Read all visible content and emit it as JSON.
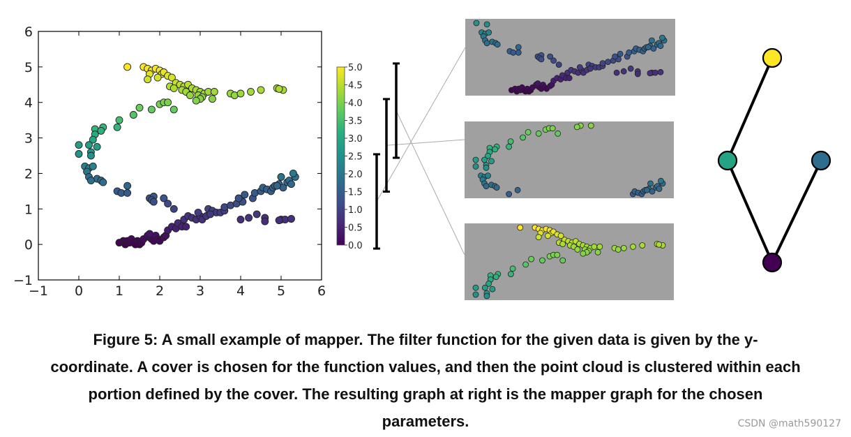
{
  "figure": {
    "caption_lines": [
      "Figure 5: A small example of mapper. The filter function for the given data is given by the y-",
      "coordinate. A cover is chosen for the function values, and then the point cloud is clustered within each",
      "portion defined by the cover. The resulting graph at right is the mapper graph for the chosen",
      "parameters."
    ],
    "watermark": "CSDN @math590127"
  },
  "chart_data": [
    {
      "type": "scatter",
      "title": "",
      "xlabel": "",
      "ylabel": "",
      "xlim": [
        -1,
        6
      ],
      "ylim": [
        -1,
        6
      ],
      "xticks": [
        "−1",
        "0",
        "1",
        "2",
        "3",
        "4",
        "5",
        "6"
      ],
      "yticks": [
        "−1",
        "0",
        "1",
        "2",
        "3",
        "4",
        "5",
        "6"
      ],
      "grid": false,
      "colormap": "viridis",
      "color_by": "y",
      "colorbar": {
        "range": [
          0,
          5
        ],
        "ticks": [
          "0.0",
          "0.5",
          "1.0",
          "1.5",
          "2.0",
          "2.5",
          "3.0",
          "3.5",
          "4.0",
          "4.5",
          "5.0"
        ]
      },
      "points": [
        [
          1.2,
          5.0
        ],
        [
          1.6,
          5.0
        ],
        [
          1.7,
          4.95
        ],
        [
          1.8,
          4.9
        ],
        [
          1.75,
          4.8
        ],
        [
          1.9,
          4.95
        ],
        [
          2.0,
          4.9
        ],
        [
          2.05,
          4.8
        ],
        [
          2.1,
          4.85
        ],
        [
          1.95,
          4.7
        ],
        [
          2.2,
          4.75
        ],
        [
          2.3,
          4.7
        ],
        [
          1.7,
          4.65
        ],
        [
          2.4,
          4.55
        ],
        [
          2.5,
          4.5
        ],
        [
          2.6,
          4.45
        ],
        [
          2.7,
          4.5
        ],
        [
          2.8,
          4.4
        ],
        [
          2.25,
          4.45
        ],
        [
          2.35,
          4.4
        ],
        [
          2.55,
          4.35
        ],
        [
          2.65,
          4.3
        ],
        [
          2.9,
          4.35
        ],
        [
          3.0,
          4.3
        ],
        [
          3.1,
          4.25
        ],
        [
          2.95,
          4.2
        ],
        [
          3.05,
          4.15
        ],
        [
          3.2,
          4.3
        ],
        [
          3.35,
          4.3
        ],
        [
          2.75,
          4.2
        ],
        [
          3.0,
          4.1
        ],
        [
          2.9,
          4.05
        ],
        [
          3.3,
          4.1
        ],
        [
          3.75,
          4.25
        ],
        [
          3.85,
          4.2
        ],
        [
          4.0,
          4.25
        ],
        [
          4.25,
          4.3
        ],
        [
          4.5,
          4.35
        ],
        [
          4.9,
          4.4
        ],
        [
          5.05,
          4.35
        ],
        [
          4.95,
          4.38
        ],
        [
          1.5,
          3.85
        ],
        [
          1.8,
          3.8
        ],
        [
          2.0,
          3.95
        ],
        [
          2.1,
          4.0
        ],
        [
          2.2,
          4.0
        ],
        [
          2.35,
          3.8
        ],
        [
          1.35,
          3.65
        ],
        [
          1.0,
          3.5
        ],
        [
          0.95,
          3.3
        ],
        [
          0.6,
          3.3
        ],
        [
          0.4,
          3.25
        ],
        [
          0.55,
          3.2
        ],
        [
          0.4,
          3.1
        ],
        [
          0.35,
          2.95
        ],
        [
          0.25,
          2.8
        ],
        [
          0.0,
          2.8
        ],
        [
          0.45,
          2.75
        ],
        [
          0.0,
          2.55
        ],
        [
          0.3,
          2.6
        ],
        [
          0.3,
          2.5
        ],
        [
          0.15,
          2.2
        ],
        [
          0.25,
          2.15
        ],
        [
          0.35,
          2.2
        ],
        [
          0.2,
          2.05
        ],
        [
          0.25,
          1.9
        ],
        [
          0.45,
          1.85
        ],
        [
          0.3,
          1.8
        ],
        [
          0.55,
          1.8
        ],
        [
          0.6,
          1.75
        ],
        [
          0.95,
          1.5
        ],
        [
          1.05,
          1.45
        ],
        [
          1.2,
          1.45
        ],
        [
          1.2,
          1.65
        ],
        [
          1.75,
          1.3
        ],
        [
          1.85,
          1.35
        ],
        [
          1.8,
          1.25
        ],
        [
          1.85,
          1.2
        ],
        [
          2.1,
          1.3
        ],
        [
          2.2,
          1.15
        ],
        [
          2.35,
          1.0
        ],
        [
          1.0,
          0.05
        ],
        [
          1.1,
          0.1
        ],
        [
          1.15,
          0.0
        ],
        [
          1.2,
          0.1
        ],
        [
          1.25,
          0.05
        ],
        [
          1.3,
          0.15
        ],
        [
          1.35,
          0.05
        ],
        [
          1.4,
          0.0
        ],
        [
          1.45,
          0.1
        ],
        [
          1.5,
          0.0
        ],
        [
          1.55,
          0.05
        ],
        [
          1.6,
          0.15
        ],
        [
          1.7,
          0.25
        ],
        [
          1.75,
          0.2
        ],
        [
          1.8,
          0.15
        ],
        [
          1.85,
          0.1
        ],
        [
          1.9,
          0.25
        ],
        [
          1.95,
          0.15
        ],
        [
          2.0,
          0.1
        ],
        [
          2.1,
          0.2
        ],
        [
          2.15,
          0.25
        ],
        [
          1.75,
          0.3
        ],
        [
          2.2,
          0.4
        ],
        [
          2.3,
          0.5
        ],
        [
          2.4,
          0.45
        ],
        [
          2.45,
          0.6
        ],
        [
          2.55,
          0.5
        ],
        [
          2.65,
          0.5
        ],
        [
          2.6,
          0.7
        ],
        [
          2.7,
          0.8
        ],
        [
          2.8,
          0.75
        ],
        [
          2.9,
          0.7
        ],
        [
          3.0,
          0.8
        ],
        [
          3.05,
          0.7
        ],
        [
          3.15,
          0.8
        ],
        [
          2.95,
          0.9
        ],
        [
          3.2,
          1.0
        ],
        [
          3.3,
          0.95
        ],
        [
          3.4,
          0.9
        ],
        [
          3.5,
          0.9
        ],
        [
          3.6,
          0.95
        ],
        [
          3.25,
          0.85
        ],
        [
          3.6,
          1.05
        ],
        [
          3.75,
          1.1
        ],
        [
          3.9,
          1.15
        ],
        [
          4.05,
          1.2
        ],
        [
          3.95,
          1.3
        ],
        [
          4.1,
          1.4
        ],
        [
          4.3,
          1.3
        ],
        [
          4.35,
          1.45
        ],
        [
          4.5,
          1.5
        ],
        [
          4.55,
          1.6
        ],
        [
          4.65,
          1.55
        ],
        [
          4.75,
          1.5
        ],
        [
          4.8,
          1.6
        ],
        [
          4.85,
          1.65
        ],
        [
          4.95,
          1.7
        ],
        [
          5.05,
          1.6
        ],
        [
          5.15,
          1.75
        ],
        [
          5.2,
          1.8
        ],
        [
          5.25,
          1.7
        ],
        [
          5.35,
          1.9
        ],
        [
          5.3,
          2.0
        ],
        [
          5.0,
          1.9
        ],
        [
          4.9,
          1.65
        ],
        [
          4.0,
          0.7
        ],
        [
          4.2,
          0.75
        ],
        [
          4.4,
          0.85
        ],
        [
          4.6,
          0.75
        ],
        [
          4.6,
          0.65
        ],
        [
          5.0,
          0.7
        ],
        [
          5.1,
          0.7
        ],
        [
          5.25,
          0.72
        ],
        [
          4.95,
          0.68
        ]
      ]
    }
  ],
  "cover_intervals": [
    [
      -0.1,
      2.55
    ],
    [
      1.5,
      4.1
    ],
    [
      2.45,
      5.1
    ]
  ],
  "mapper_graph": {
    "nodes": [
      {
        "id": "top",
        "value": 5.0
      },
      {
        "id": "middle",
        "value": 2.9
      },
      {
        "id": "right",
        "value": 1.8
      },
      {
        "id": "bottom",
        "value": 0.0
      }
    ],
    "edges": [
      [
        "top",
        "middle"
      ],
      [
        "middle",
        "bottom"
      ],
      [
        "right",
        "bottom"
      ]
    ]
  },
  "colors": {
    "panel_background": "#a0a0a0",
    "connector_line": "#aaaaaa",
    "point_edge": "#222222",
    "edge_color": "#000000"
  }
}
